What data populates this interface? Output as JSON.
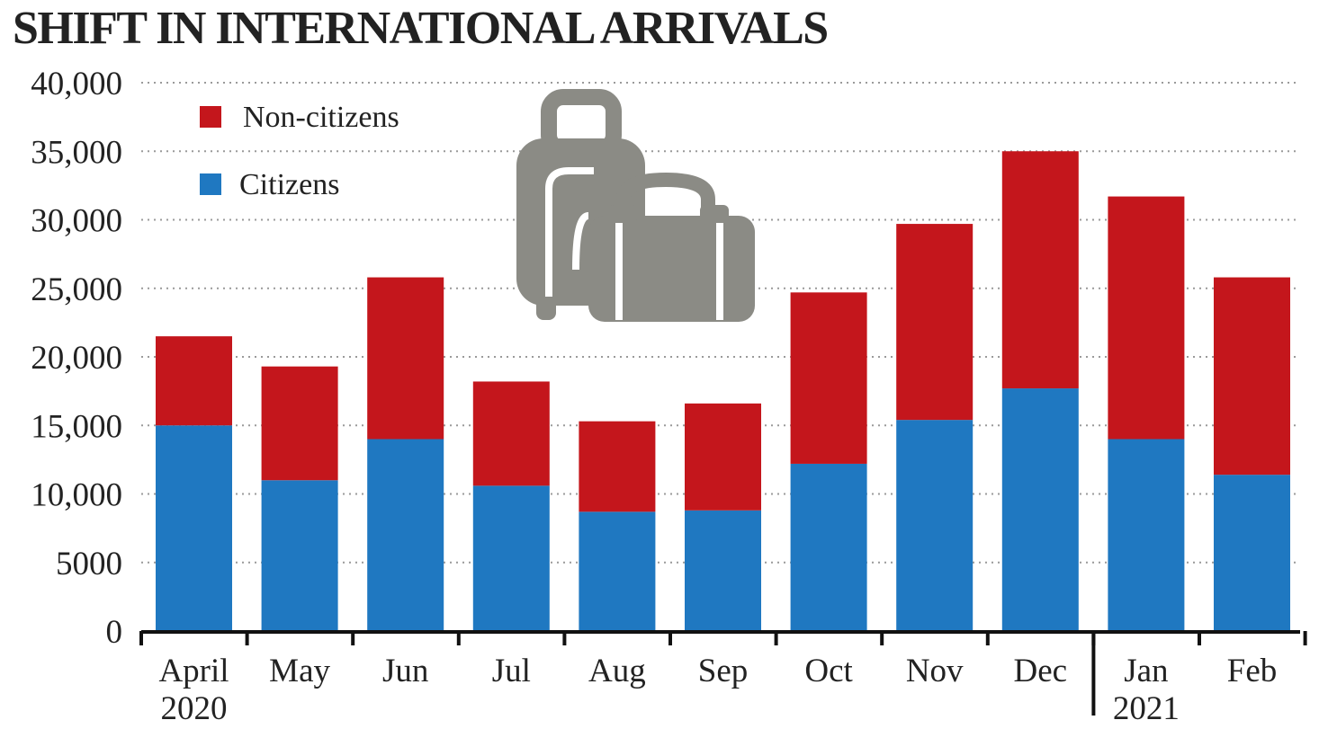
{
  "title": "SHIFT IN INTERNATIONAL ARRIVALS",
  "colors": {
    "non_citizens": "#c4161c",
    "citizens": "#1f78c1",
    "grid": "#9a9a9a",
    "axis": "#111111",
    "icon": "#8b8b85"
  },
  "decoration": {
    "icon": "luggage-icon"
  },
  "chart_data": {
    "type": "bar",
    "stacked": true,
    "title": "SHIFT IN INTERNATIONAL ARRIVALS",
    "categories": [
      "April",
      "May",
      "Jun",
      "Jul",
      "Aug",
      "Sep",
      "Oct",
      "Nov",
      "Dec",
      "Jan",
      "Feb"
    ],
    "year_labels": [
      {
        "category": "April",
        "label": "2020"
      },
      {
        "category": "Jan",
        "label": "2021"
      }
    ],
    "series": [
      {
        "name": "Citizens",
        "color": "#1f78c1",
        "values": [
          15000,
          11000,
          14000,
          10600,
          8700,
          8800,
          12200,
          15400,
          17700,
          14000,
          11400
        ]
      },
      {
        "name": "Non-citizens",
        "color": "#c4161c",
        "values": [
          6500,
          8300,
          11800,
          7600,
          6600,
          7800,
          12500,
          14300,
          17300,
          17700,
          14400
        ]
      }
    ],
    "ylim": [
      0,
      40000
    ],
    "yticks": [
      0,
      5000,
      10000,
      15000,
      20000,
      25000,
      30000,
      35000,
      40000
    ],
    "ytick_labels": [
      "0",
      "5000",
      "10,000",
      "15,000",
      "20,000",
      "25,000",
      "30,000",
      "35,000",
      "40,000"
    ],
    "xlabel": "",
    "ylabel": "",
    "grid": "horizontal dotted",
    "legend": {
      "position": "top-left",
      "entries": [
        {
          "name": "Non-citizens",
          "color": "#c4161c"
        },
        {
          "name": "Citizens",
          "color": "#1f78c1"
        }
      ]
    }
  }
}
